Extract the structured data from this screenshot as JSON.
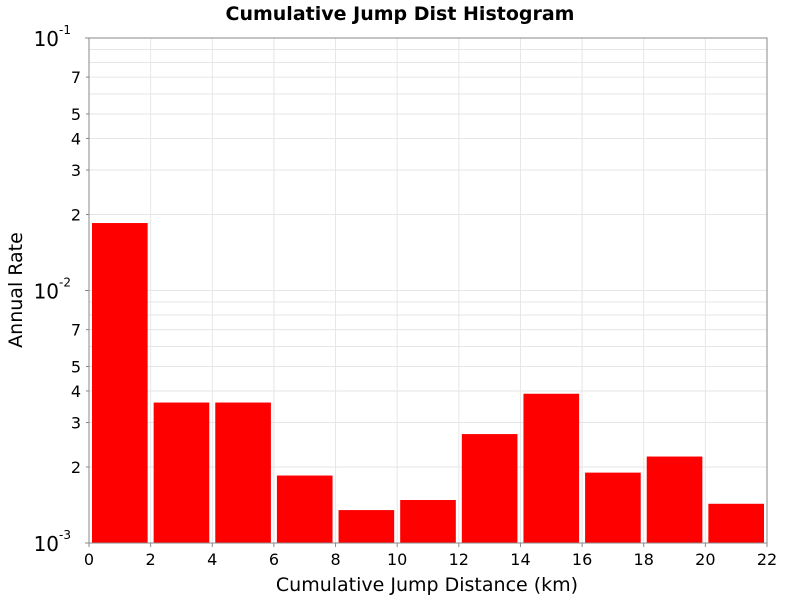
{
  "chart_data": {
    "type": "bar",
    "title": "Cumulative Jump Dist Histogram",
    "xlabel": "Cumulative Jump Distance (km)",
    "ylabel": "Annual Rate",
    "xlim": [
      0,
      22
    ],
    "ylim": [
      0.001,
      0.1
    ],
    "yscale": "log",
    "grid": true,
    "legend": "none",
    "bar_color": "#ff0000",
    "bin_width": 2,
    "x_ticks": [
      "0",
      "2",
      "4",
      "6",
      "8",
      "10",
      "12",
      "14",
      "16",
      "18",
      "20",
      "22"
    ],
    "y_major_ticks": [
      {
        "base": "10",
        "exp": "-3"
      },
      {
        "base": "10",
        "exp": "-2"
      },
      {
        "base": "10",
        "exp": "-1"
      }
    ],
    "y_minor_ticks": [
      "2",
      "3",
      "4",
      "5",
      "7",
      "2",
      "3",
      "4",
      "5",
      "7"
    ],
    "bins": [
      {
        "x_start": 0,
        "x_end": 2,
        "value": 0.0185
      },
      {
        "x_start": 2,
        "x_end": 4,
        "value": 0.0036
      },
      {
        "x_start": 4,
        "x_end": 6,
        "value": 0.0036
      },
      {
        "x_start": 6,
        "x_end": 8,
        "value": 0.00185
      },
      {
        "x_start": 8,
        "x_end": 10,
        "value": 0.00135
      },
      {
        "x_start": 10,
        "x_end": 12,
        "value": 0.00148
      },
      {
        "x_start": 12,
        "x_end": 14,
        "value": 0.0027
      },
      {
        "x_start": 14,
        "x_end": 16,
        "value": 0.0039
      },
      {
        "x_start": 16,
        "x_end": 18,
        "value": 0.0019
      },
      {
        "x_start": 18,
        "x_end": 20,
        "value": 0.0022
      },
      {
        "x_start": 20,
        "x_end": 22,
        "value": 0.00143
      }
    ]
  }
}
